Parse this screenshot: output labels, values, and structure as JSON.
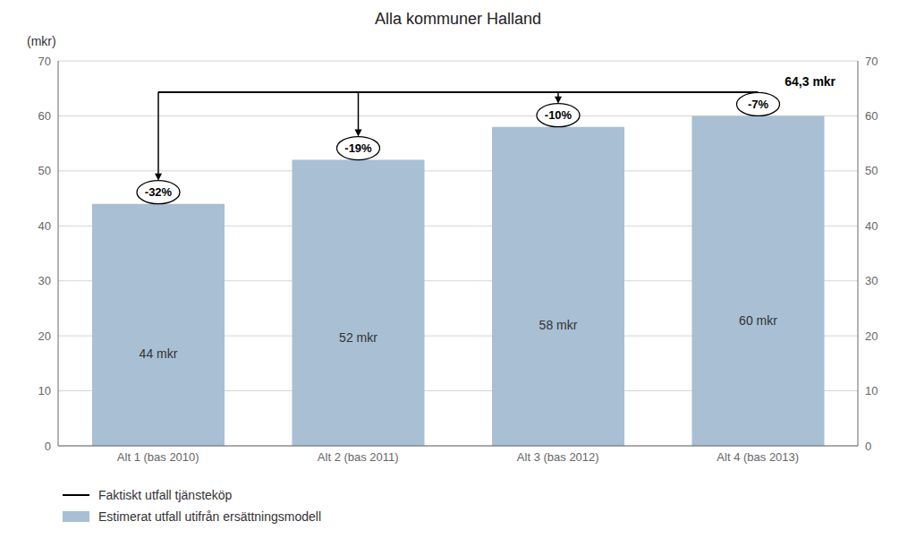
{
  "chart_data": {
    "type": "bar",
    "title": "Alla kommuner Halland",
    "y_label": "(mkr)",
    "categories": [
      "Alt 1 (bas 2010)",
      "Alt 2 (bas 2011)",
      "Alt 3 (bas 2012)",
      "Alt 4 (bas 2013)"
    ],
    "series": [
      {
        "name": "Faktiskt utfall tjänsteköp",
        "type": "line",
        "color": "#000000",
        "values": [
          64.3,
          64.3,
          64.3,
          64.3
        ]
      },
      {
        "name": "Estimerat utfall utifrån ersättningsmodell",
        "type": "bar",
        "color": "#a8bfd4",
        "values": [
          44,
          52,
          58,
          60
        ],
        "value_labels": [
          "44 mkr",
          "52 mkr",
          "58 mkr",
          "60 mkr"
        ]
      }
    ],
    "data_labels": true,
    "annotations": [
      {
        "text": "64,3 mkr",
        "category": "Alt 4 (bas 2013)",
        "y": 64.3
      },
      {
        "text": "-32%",
        "category": "Alt 1 (bas 2010)",
        "y": 44
      },
      {
        "text": "-19%",
        "category": "Alt 2 (bas 2011)",
        "y": 52
      },
      {
        "text": "-10%",
        "category": "Alt 3 (bas 2012)",
        "y": 58
      },
      {
        "text": "-7%",
        "category": "Alt 4 (bas 2013)",
        "y": 60
      }
    ],
    "ylim": [
      0,
      70
    ],
    "yticks": [
      0,
      10,
      20,
      30,
      40,
      50,
      60,
      70
    ],
    "y2lim": [
      0,
      70
    ],
    "y2ticks": [
      0,
      10,
      20,
      30,
      40,
      50,
      60,
      70
    ],
    "grid": true,
    "legend": "bottom"
  }
}
